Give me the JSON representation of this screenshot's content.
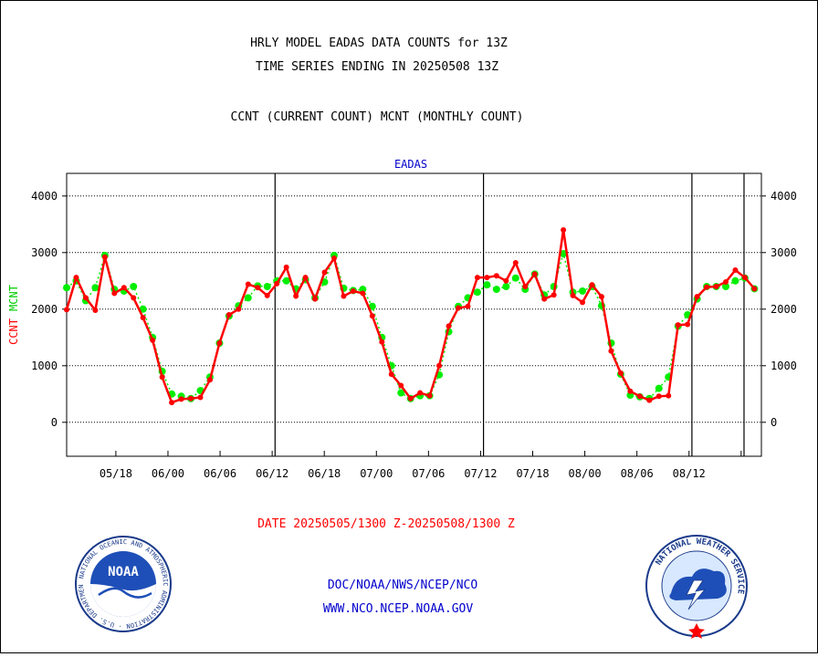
{
  "titles": {
    "line1": "HRLY MODEL EADAS DATA COUNTS for 13Z",
    "line2": "TIME SERIES ENDING IN 20250508 13Z",
    "line3": "CCNT (CURRENT COUNT) MCNT (MONTHLY COUNT)"
  },
  "footer": {
    "date_range": "DATE 20250505/1300 Z-20250508/1300 Z",
    "org_path": "DOC/NOAA/NWS/NCEP/NCO",
    "website": "WWW.NCO.NCEP.NOAA.GOV"
  },
  "logos": {
    "noaa": {
      "center_text": "NOAA",
      "ring_text": "NATIONAL OCEANIC AND ATMOSPHERIC ADMINISTRATION · U.S. DEPARTMENT OF COMMERCE"
    },
    "nws": {
      "ring_text": "NATIONAL WEATHER SERVICE"
    }
  },
  "colors": {
    "ccnt": "#ff0000",
    "mcnt": "#00ee00",
    "title": "#000000",
    "link": "#0000cc",
    "date": "#ff0000",
    "panel_title": "#0000cc"
  },
  "chart_data": {
    "type": "line",
    "title": "EADAS",
    "ylabel_left": [
      "CCNT",
      "MCNT"
    ],
    "ylim": [
      -600,
      4400
    ],
    "yticks": [
      0,
      1000,
      2000,
      3000,
      4000
    ],
    "ytick_labels": [
      "0",
      "1000",
      "2000",
      "3000",
      "4000"
    ],
    "xlim": [
      0,
      120
    ],
    "xtick_positions": [
      8.5,
      17.5,
      26.5,
      35.5,
      44.5,
      53.5,
      62.5,
      71.5,
      80.5,
      89.5,
      98.5,
      107.5,
      116.5
    ],
    "xtick_labels": [
      "05/18",
      "06/00",
      "06/06",
      "06/12",
      "06/18",
      "07/00",
      "07/06",
      "07/12",
      "07/18",
      "08/00",
      "08/06",
      "08/12"
    ],
    "xtick_label_positions": [
      8.5,
      17.5,
      26.5,
      35.5,
      44.5,
      53.5,
      62.5,
      71.5,
      80.5,
      89.5,
      98.5,
      107.5
    ],
    "day_boundaries": [
      36,
      72,
      108
    ],
    "end_marker": 117,
    "grid": true,
    "series": [
      {
        "name": "CCNT",
        "color": "#ff0000",
        "values": [
          1990,
          2560,
          2200,
          1980,
          2920,
          2280,
          2380,
          2200,
          1850,
          1450,
          800,
          350,
          410,
          420,
          440,
          750,
          1400,
          1900,
          2000,
          2440,
          2380,
          2240,
          2450,
          2740,
          2230,
          2560,
          2180,
          2650,
          2900,
          2230,
          2320,
          2280,
          1880,
          1420,
          850,
          650,
          420,
          520,
          470,
          1000,
          1700,
          2020,
          2050,
          2560,
          2560,
          2590,
          2500,
          2820,
          2400,
          2620,
          2180,
          2250,
          3400,
          2240,
          2120,
          2430,
          2220,
          1260,
          870,
          550,
          460,
          390,
          460,
          470,
          1720,
          1730,
          2220,
          2390,
          2400,
          2480,
          2690,
          2560,
          2360
        ]
      },
      {
        "name": "MCNT",
        "color": "#00ee00",
        "values": [
          2380,
          2500,
          2150,
          2380,
          2950,
          2350,
          2320,
          2400,
          2000,
          1500,
          900,
          500,
          460,
          420,
          560,
          800,
          1400,
          1880,
          2060,
          2200,
          2410,
          2400,
          2500,
          2500,
          2360,
          2520,
          2200,
          2480,
          2950,
          2370,
          2330,
          2350,
          2050,
          1500,
          1000,
          520,
          420,
          470,
          470,
          840,
          1600,
          2050,
          2200,
          2300,
          2430,
          2350,
          2400,
          2550,
          2350,
          2620,
          2250,
          2400,
          2980,
          2300,
          2320,
          2400,
          2060,
          1400,
          850,
          480,
          450,
          420,
          600,
          800,
          1700,
          1900,
          2180,
          2400,
          2400,
          2400,
          2500,
          2550,
          2360
        ]
      }
    ]
  }
}
